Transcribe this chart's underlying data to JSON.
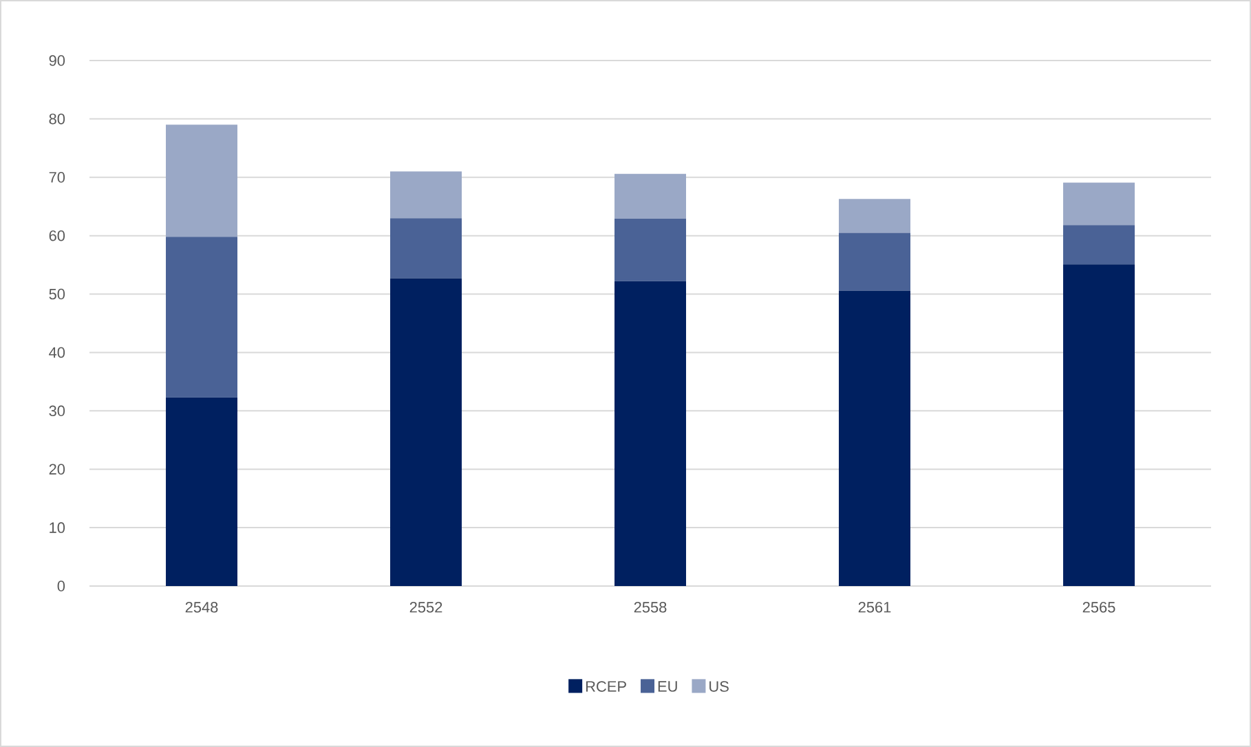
{
  "chart_data": {
    "type": "bar",
    "stacked": true,
    "categories": [
      "2548",
      "2552",
      "2558",
      "2561",
      "2565"
    ],
    "series": [
      {
        "name": "RCEP",
        "color": "#002060",
        "values": [
          32.3,
          52.7,
          52.2,
          50.6,
          55.1
        ]
      },
      {
        "name": "EU",
        "color": "#4a6296",
        "values": [
          27.5,
          10.3,
          10.7,
          9.9,
          6.7
        ]
      },
      {
        "name": "US",
        "color": "#9aa8c6",
        "values": [
          19.2,
          8.0,
          7.7,
          5.8,
          7.3
        ]
      }
    ],
    "ylim": [
      0,
      90
    ],
    "yticks": [
      0,
      10,
      20,
      30,
      40,
      50,
      60,
      70,
      80,
      90
    ],
    "grid": "y",
    "legend": "bottom"
  }
}
